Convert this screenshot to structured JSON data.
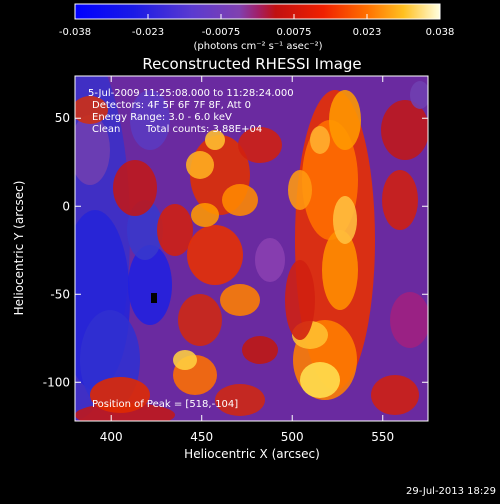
{
  "chart_data": {
    "type": "heatmap",
    "title": "Reconstructed RHESSI Image",
    "xlabel": "Heliocentric X (arcsec)",
    "ylabel": "Heliocentric Y (arcsec)",
    "xlim": [
      380,
      575
    ],
    "ylim": [
      -122,
      74
    ],
    "x_ticks": [
      400,
      450,
      500,
      550
    ],
    "y_ticks": [
      50,
      0,
      -50,
      -100
    ],
    "colorbar": {
      "range": [
        -0.038,
        0.038
      ],
      "ticks": [
        "-0.038",
        "-0.023",
        "-0.0075",
        "0.0075",
        "0.023",
        "0.038"
      ],
      "unit_label": "(photons cm⁻² s⁻¹ asec⁻²)"
    },
    "annotations": {
      "time_range": "5-Jul-2009 11:25:08.000 to 11:28:24.000",
      "detectors": "Detectors: 4F 5F 6F 7F 8F, Att 0",
      "energy_range": "Energy Range: 3.0 - 6.0 keV",
      "method": "Clean",
      "total_counts": "Total counts: 3.88E+04",
      "peak_position": "Position of Peak = [518,-104]"
    },
    "grid": false,
    "timestamp": "29-Jul-2013 18:29"
  }
}
